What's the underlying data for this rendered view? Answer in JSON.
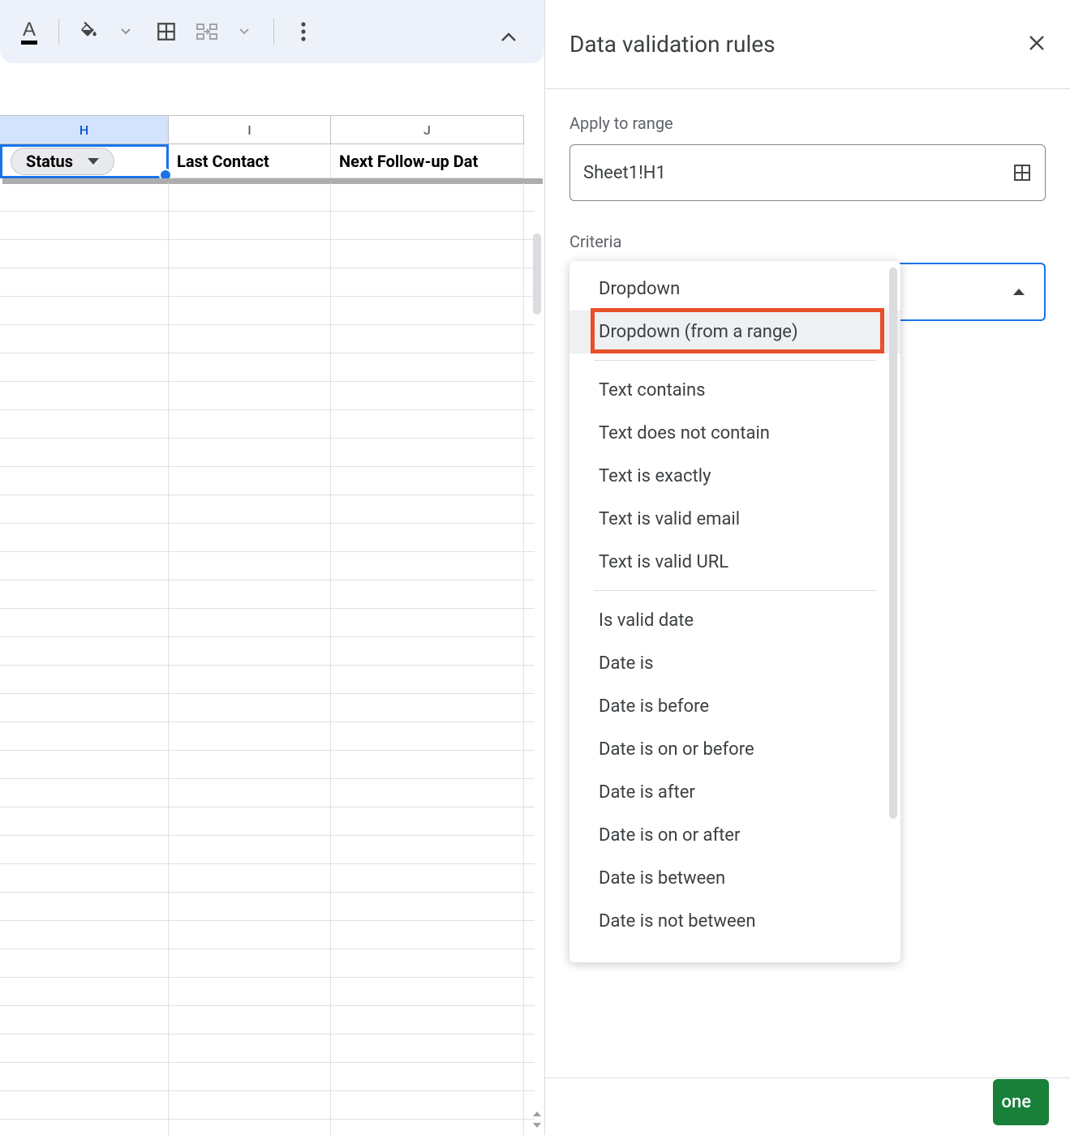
{
  "toolbar": {
    "icons": {
      "text_color": "A",
      "fill_caret": "▾"
    }
  },
  "sheet": {
    "columns": [
      {
        "id": "H",
        "label": "H",
        "width": "w-h",
        "selected": true,
        "header": "Status",
        "is_dropdown_cell": true
      },
      {
        "id": "I",
        "label": "I",
        "width": "w-i",
        "selected": false,
        "header": "Last Contact",
        "is_dropdown_cell": false
      },
      {
        "id": "J",
        "label": "J",
        "width": "w-j",
        "selected": false,
        "header": "Next Follow-up Dat",
        "is_dropdown_cell": false
      }
    ],
    "active_cell_chip": "Status",
    "col_letter_font": {
      "normal": "#5f6368",
      "selected": "#0b57d0",
      "selected_bg": "#d3e3fd"
    }
  },
  "panel": {
    "title": "Data validation rules",
    "apply_to_range": {
      "label": "Apply to range",
      "value": "Sheet1!H1"
    },
    "criteria_label": "Criteria",
    "criteria_options": [
      {
        "label": "Dropdown",
        "group_end": false
      },
      {
        "label": "Dropdown (from a range)",
        "hover": true,
        "group_end": true,
        "highlighted": true
      },
      {
        "label": "Text contains",
        "group_end": false
      },
      {
        "label": "Text does not contain",
        "group_end": false
      },
      {
        "label": "Text is exactly",
        "group_end": false
      },
      {
        "label": "Text is valid email",
        "group_end": false
      },
      {
        "label": "Text is valid URL",
        "group_end": true
      },
      {
        "label": "Is valid date",
        "group_end": false
      },
      {
        "label": "Date is",
        "group_end": false
      },
      {
        "label": "Date is before",
        "group_end": false
      },
      {
        "label": "Date is on or before",
        "group_end": false
      },
      {
        "label": "Date is after",
        "group_end": false
      },
      {
        "label": "Date is on or after",
        "group_end": false
      },
      {
        "label": "Date is between",
        "group_end": false
      },
      {
        "label": "Date is not between",
        "group_end": false
      }
    ],
    "done_button_fragment": "one"
  },
  "colors": {
    "selection_blue": "#1a73e8",
    "highlight_orange": "#e8502a",
    "done_green": "#188038",
    "panel_border": "#dadce0",
    "text_primary": "#3c4043",
    "text_secondary": "#5f6368",
    "toolbar_bg": "#edf2fa"
  }
}
